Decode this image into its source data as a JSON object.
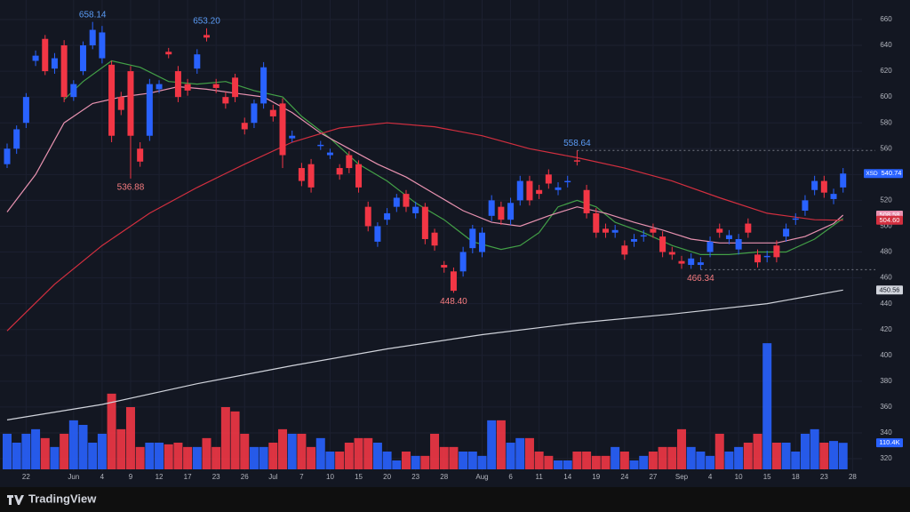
{
  "chart_data": {
    "type": "candlestick",
    "symbol": "XSD",
    "brand": "TradingView",
    "up_color": "#2962ff",
    "down_color": "#f23645",
    "ylim": [
      303.5,
      675.1
    ],
    "yticks": [
      320,
      340,
      360,
      380,
      400,
      420,
      440,
      460,
      480,
      500,
      520,
      540,
      560,
      580,
      600,
      620,
      640,
      660
    ],
    "xticks": [
      {
        "value": 2,
        "label": "22"
      },
      {
        "value": 7,
        "label": "Jun"
      },
      {
        "value": 10,
        "label": "4"
      },
      {
        "value": 13,
        "label": "9"
      },
      {
        "value": 16,
        "label": "12"
      },
      {
        "value": 19,
        "label": "17"
      },
      {
        "value": 22,
        "label": "23"
      },
      {
        "value": 25,
        "label": "26"
      },
      {
        "value": 28,
        "label": "Jul"
      },
      {
        "value": 31,
        "label": "7"
      },
      {
        "value": 34,
        "label": "10"
      },
      {
        "value": 37,
        "label": "15"
      },
      {
        "value": 40,
        "label": "20"
      },
      {
        "value": 43,
        "label": "23"
      },
      {
        "value": 46,
        "label": "28"
      },
      {
        "value": 50,
        "label": "Aug"
      },
      {
        "value": 53,
        "label": "6"
      },
      {
        "value": 56,
        "label": "11"
      },
      {
        "value": 59,
        "label": "14"
      },
      {
        "value": 62,
        "label": "19"
      },
      {
        "value": 65,
        "label": "24"
      },
      {
        "value": 68,
        "label": "27"
      },
      {
        "value": 71,
        "label": "Sep"
      },
      {
        "value": 74,
        "label": "4"
      },
      {
        "value": 77,
        "label": "10"
      },
      {
        "value": 80,
        "label": "15"
      },
      {
        "value": 83,
        "label": "18"
      },
      {
        "value": 86,
        "label": "23"
      },
      {
        "value": 89,
        "label": "28"
      }
    ],
    "open": [
      548,
      560,
      580,
      628,
      645,
      622,
      640,
      600,
      620,
      640,
      630,
      625,
      600,
      620,
      560,
      570,
      606,
      635,
      620,
      610,
      622,
      648,
      610,
      600,
      615,
      580,
      580,
      595,
      590,
      595,
      568,
      545,
      548,
      562,
      555,
      545,
      555,
      548,
      515,
      488,
      505,
      515,
      525,
      510,
      515,
      495,
      470,
      465,
      465,
      483,
      480,
      508,
      515,
      505,
      520,
      535,
      528,
      540,
      528,
      534,
      551,
      528,
      510,
      498,
      495,
      485,
      488,
      492,
      498,
      492,
      480,
      473,
      470,
      470,
      480,
      498,
      490,
      482,
      502,
      478,
      476,
      485,
      492,
      505,
      512,
      528,
      535,
      521,
      530
    ],
    "high": [
      564,
      578,
      603,
      636,
      648,
      634,
      644,
      613,
      643,
      658.14,
      655,
      628,
      604,
      624,
      565,
      614,
      613,
      638,
      624,
      614,
      637,
      653.2,
      614,
      604,
      618,
      584,
      598,
      627,
      594,
      599,
      574,
      549,
      552,
      566,
      560,
      548,
      558,
      551,
      519,
      503,
      514,
      525,
      528,
      519,
      518,
      498,
      473,
      468,
      484,
      501,
      499,
      524,
      519,
      522,
      539,
      539,
      532,
      544,
      534,
      539,
      558.64,
      532,
      514,
      502,
      501,
      489,
      494,
      497,
      502,
      496,
      484,
      477,
      479,
      476,
      492,
      502,
      497,
      494,
      506,
      482,
      481,
      489,
      502,
      510,
      524,
      539,
      539,
      529,
      545
    ],
    "low": [
      545,
      556,
      576,
      624,
      617,
      618,
      596,
      597,
      617,
      637,
      626,
      565,
      586,
      536.88,
      546,
      566,
      603,
      630,
      596,
      601,
      618,
      643,
      603,
      591,
      596,
      571,
      576,
      591,
      581,
      545,
      565,
      531,
      526,
      559,
      552,
      536,
      541,
      526,
      496,
      484,
      501,
      511,
      511,
      506,
      486,
      481,
      464,
      448.4,
      461,
      479,
      476,
      504,
      501,
      501,
      516,
      516,
      521,
      529,
      524,
      530,
      547,
      506,
      491,
      491,
      491,
      474,
      484,
      488,
      491,
      476,
      474,
      467,
      467,
      466.34,
      476,
      491,
      486,
      478,
      491,
      468,
      472,
      472,
      488,
      501,
      508,
      524,
      522,
      517,
      526
    ],
    "close": [
      560,
      575,
      600,
      632,
      620,
      630,
      600,
      610,
      640,
      652,
      650,
      570,
      590,
      570,
      550,
      610,
      610,
      633,
      600,
      605,
      633,
      646,
      607,
      595,
      600,
      575,
      595,
      623,
      585,
      555,
      570,
      535,
      530,
      563,
      557,
      540,
      545,
      530,
      500,
      500,
      510,
      522,
      515,
      515,
      490,
      485,
      468,
      450,
      480,
      498,
      495,
      520,
      505,
      518,
      535,
      520,
      525,
      533,
      530,
      535,
      550,
      510,
      495,
      495,
      497,
      478,
      490,
      493,
      495,
      480,
      478,
      471,
      475,
      472,
      488,
      495,
      493,
      490,
      495,
      472,
      477,
      476,
      498,
      506,
      520,
      535,
      526,
      525,
      540.74
    ],
    "high_labels": [
      null,
      null,
      null,
      null,
      null,
      null,
      null,
      null,
      null,
      "658.14",
      null,
      null,
      null,
      null,
      null,
      null,
      null,
      null,
      null,
      null,
      null,
      "653.20",
      null,
      null,
      null,
      null,
      null,
      null,
      null,
      null,
      null,
      null,
      null,
      null,
      null,
      null,
      null,
      null,
      null,
      null,
      null,
      null,
      null,
      null,
      null,
      null,
      null,
      null,
      null,
      null,
      null,
      null,
      null,
      null,
      null,
      null,
      null,
      null,
      null,
      null,
      "558.64",
      null,
      null,
      null,
      null,
      null,
      null,
      null,
      null,
      null,
      null,
      null,
      null,
      null,
      null,
      null,
      null,
      null,
      null,
      null,
      null,
      null,
      null,
      null,
      null,
      null,
      null,
      null,
      null
    ],
    "low_labels": [
      null,
      null,
      null,
      null,
      null,
      null,
      null,
      null,
      null,
      null,
      null,
      null,
      null,
      "536.88",
      null,
      null,
      null,
      null,
      null,
      null,
      null,
      null,
      null,
      null,
      null,
      null,
      null,
      null,
      null,
      null,
      null,
      null,
      null,
      null,
      null,
      null,
      null,
      null,
      null,
      null,
      null,
      null,
      null,
      null,
      null,
      null,
      null,
      "448.40",
      null,
      null,
      null,
      null,
      null,
      null,
      null,
      null,
      null,
      null,
      null,
      null,
      null,
      null,
      null,
      null,
      null,
      null,
      null,
      null,
      null,
      null,
      null,
      null,
      null,
      "466.34",
      null,
      null,
      null,
      null,
      null,
      null,
      null,
      null,
      null,
      null,
      null,
      null,
      null,
      null,
      null
    ],
    "vlim": [
      0,
      555
    ],
    "volume": [
      148,
      111,
      148,
      167,
      130,
      93,
      148,
      204,
      185,
      111,
      148,
      315,
      167,
      259,
      93,
      111,
      111,
      104,
      111,
      93,
      93,
      130,
      93,
      259,
      241,
      148,
      93,
      93,
      111,
      167,
      148,
      148,
      93,
      130,
      74,
      74,
      111,
      130,
      130,
      111,
      74,
      37,
      74,
      56,
      56,
      148,
      93,
      93,
      74,
      74,
      56,
      204,
      204,
      111,
      130,
      130,
      74,
      56,
      37,
      37,
      74,
      74,
      56,
      56,
      93,
      74,
      37,
      56,
      74,
      93,
      93,
      167,
      93,
      74,
      56,
      148,
      74,
      93,
      111,
      148,
      525,
      111,
      111,
      74,
      148,
      167,
      111,
      118,
      110.4
    ],
    "volume_labels": [
      null,
      null,
      null,
      null,
      null,
      null,
      null,
      null,
      null,
      null,
      null,
      null,
      null,
      null,
      null,
      null,
      null,
      null,
      null,
      null,
      null,
      null,
      null,
      null,
      null,
      null,
      null,
      null,
      null,
      null,
      null,
      null,
      null,
      null,
      null,
      null,
      null,
      null,
      null,
      null,
      null,
      null,
      null,
      null,
      null,
      null,
      null,
      null,
      null,
      null,
      null,
      null,
      null,
      null,
      null,
      null,
      null,
      null,
      null,
      null,
      null,
      null,
      null,
      null,
      null,
      null,
      null,
      null,
      null,
      null,
      null,
      null,
      null,
      null,
      null,
      null,
      null,
      null,
      null,
      null,
      null,
      null,
      null,
      null,
      null,
      null,
      null,
      null,
      "110.4K"
    ],
    "lines": [
      {
        "color": "#43a047",
        "x": [
          6,
          8,
          11,
          14,
          17,
          20,
          23,
          26,
          29,
          31,
          34,
          37,
          40,
          43,
          46,
          49,
          52,
          54,
          56,
          58,
          60,
          62,
          64,
          67,
          70,
          73,
          76,
          79,
          82,
          85,
          88
        ],
        "values": [
          598,
          612,
          628,
          623,
          612,
          610,
          612,
          605,
          600,
          585,
          568,
          548,
          535,
          518,
          505,
          488,
          482,
          485,
          495,
          515,
          520,
          515,
          503,
          495,
          485,
          478,
          478,
          480,
          480,
          490,
          506
        ],
        "value_labels": [
          null,
          null,
          null,
          null,
          null,
          null,
          null,
          null,
          null,
          null,
          null,
          null,
          null,
          null,
          null,
          null,
          null,
          null,
          null,
          null,
          null,
          null,
          null,
          null,
          null,
          null,
          null,
          null,
          null,
          null,
          null
        ]
      },
      {
        "color": "#e892b0",
        "x": [
          0,
          3,
          6,
          9,
          12,
          15,
          18,
          21,
          24,
          27,
          30,
          33,
          36,
          39,
          42,
          45,
          48,
          51,
          54,
          57,
          60,
          63,
          66,
          69,
          72,
          75,
          78,
          81,
          84,
          87,
          88
        ],
        "values": [
          511,
          540,
          580,
          595,
          600,
          603,
          608,
          606,
          603,
          600,
          588,
          572,
          560,
          548,
          538,
          525,
          512,
          503,
          500,
          508,
          515,
          510,
          503,
          497,
          490,
          487,
          487,
          487,
          492,
          502,
          508.58
        ],
        "value_labels": [
          null,
          null,
          null,
          null,
          null,
          null,
          null,
          null,
          null,
          null,
          null,
          null,
          null,
          null,
          null,
          null,
          null,
          null,
          null,
          null,
          null,
          null,
          null,
          null,
          null,
          null,
          null,
          null,
          null,
          null,
          null
        ]
      },
      {
        "color": "#d32f3f",
        "x": [
          0,
          5,
          10,
          15,
          20,
          25,
          30,
          35,
          40,
          45,
          50,
          55,
          60,
          65,
          70,
          75,
          80,
          85,
          88
        ],
        "values": [
          419,
          455,
          485,
          510,
          530,
          548,
          565,
          576,
          580,
          577,
          570,
          560,
          553,
          545,
          535,
          522,
          510,
          505,
          504.6
        ],
        "value_labels": [
          null,
          null,
          null,
          null,
          null,
          null,
          null,
          null,
          null,
          null,
          null,
          null,
          null,
          null,
          null,
          null,
          null,
          null,
          "504.60"
        ]
      },
      {
        "color": "#d1d4dc",
        "x": [
          0,
          10,
          20,
          30,
          40,
          50,
          60,
          70,
          80,
          88
        ],
        "values": [
          350,
          362,
          378,
          392,
          405,
          416,
          425,
          432,
          440,
          450.56
        ],
        "value_labels": [
          null,
          null,
          null,
          null,
          null,
          null,
          null,
          null,
          null,
          null
        ]
      }
    ]
  }
}
